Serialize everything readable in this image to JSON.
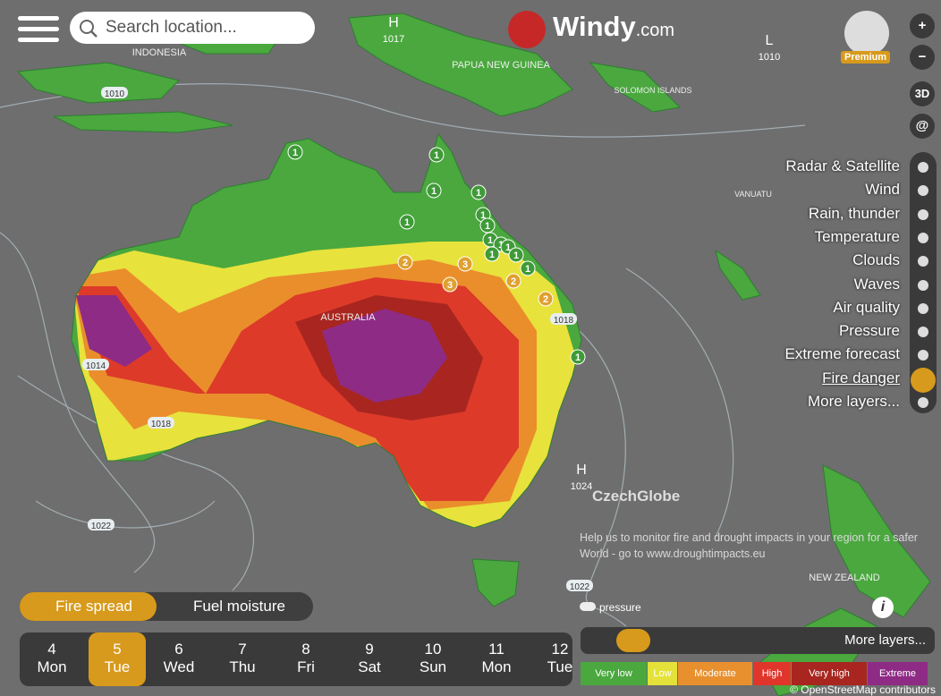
{
  "header": {
    "search_placeholder": "Search location...",
    "logo": "Windy",
    "logo_suffix": ".com",
    "account_badge": "Premium",
    "view_3d": "3D"
  },
  "map_labels": [
    "INDONESIA",
    "PAPUA NEW GUINEA",
    "SOLOMON ISLANDS",
    "VANUATU",
    "AUSTRALIA",
    "NEW ZEALAND"
  ],
  "pressure_centers": [
    {
      "type": "H",
      "value": 1017
    },
    {
      "type": "L",
      "value": 1010
    },
    {
      "type": "H",
      "value": 1024
    }
  ],
  "isobar_labels": [
    1010,
    1014,
    1018,
    1018,
    1022,
    1022
  ],
  "fire_markers": [
    1,
    1,
    1,
    1,
    1,
    1,
    1,
    1,
    1,
    1,
    1,
    1,
    1,
    2,
    3,
    2,
    3,
    2,
    1
  ],
  "attribution": "CzechGlobe",
  "info_text": "Help us to monitor fire and drought impacts in your region for a safer World - go to www.droughtimpacts.eu",
  "layers": [
    "Radar & Satellite",
    "Wind",
    "Rain, thunder",
    "Temperature",
    "Clouds",
    "Waves",
    "Air quality",
    "Pressure",
    "Extreme forecast",
    "Fire danger",
    "More layers..."
  ],
  "tabs": [
    "Fire spread",
    "Fuel moisture"
  ],
  "pressure_toggle": "pressure",
  "timeline": [
    {
      "date": 4,
      "weekday": "Mon"
    },
    {
      "date": 5,
      "weekday": "Tue"
    },
    {
      "date": 6,
      "weekday": "Wed"
    },
    {
      "date": 7,
      "weekday": "Thu"
    },
    {
      "date": 8,
      "weekday": "Fri"
    },
    {
      "date": 9,
      "weekday": "Sat"
    },
    {
      "date": 10,
      "weekday": "Sun"
    },
    {
      "date": 11,
      "weekday": "Mon"
    },
    {
      "date": 12,
      "weekday": "Tue"
    }
  ],
  "bottom_menu": "More layers...",
  "legend": [
    "Very low",
    "Low",
    "Moderate",
    "High",
    "Very high",
    "Extreme"
  ],
  "copyright": "© OpenStreetMap contributors"
}
